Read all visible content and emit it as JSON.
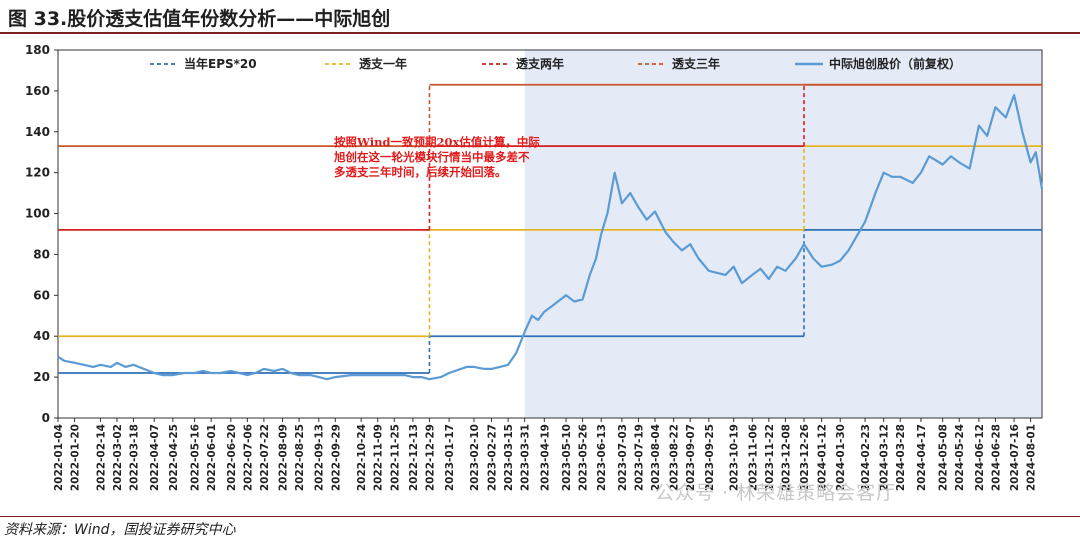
{
  "title": "图 33.股价透支估值年份数分析——中际旭创",
  "source": "资料来源：Wind，国投证券研究中心",
  "watermark": "公众号 · 林荣雄策略会客厅",
  "chart_data": {
    "type": "line",
    "ylim": [
      0,
      180
    ],
    "yticks": [
      0,
      20,
      40,
      60,
      80,
      100,
      120,
      140,
      160,
      180
    ],
    "xlim": [
      "2022-01-04",
      "2024-08-12"
    ],
    "xticks": [
      "2022-01-04",
      "2022-01-20",
      "2022-02-14",
      "2022-03-02",
      "2022-03-18",
      "2022-04-07",
      "2022-04-25",
      "2022-05-16",
      "2022-06-01",
      "2022-06-20",
      "2022-07-06",
      "2022-07-22",
      "2022-08-09",
      "2022-08-25",
      "2022-09-13",
      "2022-09-29",
      "2022-10-24",
      "2022-11-09",
      "2022-11-25",
      "2022-12-13",
      "2022-12-29",
      "2023-01-17",
      "2023-02-10",
      "2023-02-27",
      "2023-03-15",
      "2023-03-31",
      "2023-04-19",
      "2023-05-10",
      "2023-05-26",
      "2023-06-13",
      "2023-07-03",
      "2023-07-19",
      "2023-08-04",
      "2023-08-22",
      "2023-09-07",
      "2023-09-25",
      "2023-10-19",
      "2023-11-06",
      "2023-11-22",
      "2023-12-08",
      "2023-12-26",
      "2024-01-12",
      "2024-01-30",
      "2024-02-23",
      "2024-03-12",
      "2024-03-28",
      "2024-04-17",
      "2024-05-08",
      "2024-05-24",
      "2024-06-12",
      "2024-06-28",
      "2024-07-16",
      "2024-08-01"
    ],
    "grid": false,
    "legend_position": "top",
    "shaded_region": [
      "2023-03-31",
      "2024-08-12"
    ],
    "annotation": "按照Wind一致预期20x估值计算，中际旭创在这一轮光模块行情当中最多差不多透支三年时间，后续开始回落。",
    "series": [
      {
        "name": "当年EPS*20",
        "style": "dashed",
        "color": "#2f6fb8",
        "steps": [
          {
            "x": [
              "2022-01-04",
              "2022-12-29"
            ],
            "y": 22
          },
          {
            "x": [
              "2022-12-29",
              "2023-12-26"
            ],
            "y": 40
          },
          {
            "x": [
              "2023-12-26",
              "2024-08-12"
            ],
            "y": 92
          }
        ]
      },
      {
        "name": "透支一年",
        "style": "dashed",
        "color": "#e6b422",
        "steps": [
          {
            "x": [
              "2022-01-04",
              "2022-12-29"
            ],
            "y": 40
          },
          {
            "x": [
              "2022-12-29",
              "2023-12-26"
            ],
            "y": 92
          },
          {
            "x": [
              "2023-12-26",
              "2024-08-12"
            ],
            "y": 133
          }
        ]
      },
      {
        "name": "透支两年",
        "style": "dashed",
        "color": "#d41f1f",
        "steps": [
          {
            "x": [
              "2022-01-04",
              "2022-12-29"
            ],
            "y": 92
          },
          {
            "x": [
              "2022-12-29",
              "2023-12-26"
            ],
            "y": 133
          },
          {
            "x": [
              "2023-12-26",
              "2024-08-12"
            ],
            "y": 163
          }
        ]
      },
      {
        "name": "透支三年",
        "style": "dashed",
        "color": "#c8562a",
        "steps": [
          {
            "x": [
              "2022-01-04",
              "2022-12-29"
            ],
            "y": 133
          },
          {
            "x": [
              "2022-12-29",
              "2024-08-12"
            ],
            "y": 163
          }
        ]
      },
      {
        "name": "中际旭创股价（前复权）",
        "style": "solid",
        "color": "#5b9bd5",
        "x": [
          "2022-01-04",
          "2022-01-10",
          "2022-01-20",
          "2022-02-07",
          "2022-02-14",
          "2022-02-24",
          "2022-03-02",
          "2022-03-10",
          "2022-03-18",
          "2022-03-28",
          "2022-04-07",
          "2022-04-15",
          "2022-04-25",
          "2022-05-06",
          "2022-05-16",
          "2022-05-24",
          "2022-06-01",
          "2022-06-10",
          "2022-06-20",
          "2022-06-28",
          "2022-07-06",
          "2022-07-14",
          "2022-07-22",
          "2022-08-01",
          "2022-08-09",
          "2022-08-17",
          "2022-08-25",
          "2022-09-05",
          "2022-09-13",
          "2022-09-21",
          "2022-09-29",
          "2022-10-14",
          "2022-10-24",
          "2022-11-01",
          "2022-11-09",
          "2022-11-17",
          "2022-11-25",
          "2022-12-05",
          "2022-12-13",
          "2022-12-21",
          "2022-12-29",
          "2023-01-09",
          "2023-01-17",
          "2023-02-03",
          "2023-02-10",
          "2023-02-20",
          "2023-02-27",
          "2023-03-07",
          "2023-03-15",
          "2023-03-23",
          "2023-03-31",
          "2023-04-07",
          "2023-04-13",
          "2023-04-19",
          "2023-04-27",
          "2023-05-10",
          "2023-05-18",
          "2023-05-26",
          "2023-06-02",
          "2023-06-08",
          "2023-06-13",
          "2023-06-19",
          "2023-06-26",
          "2023-07-03",
          "2023-07-11",
          "2023-07-19",
          "2023-07-27",
          "2023-08-04",
          "2023-08-14",
          "2023-08-22",
          "2023-08-30",
          "2023-09-07",
          "2023-09-15",
          "2023-09-25",
          "2023-10-11",
          "2023-10-19",
          "2023-10-27",
          "2023-11-06",
          "2023-11-14",
          "2023-11-22",
          "2023-11-30",
          "2023-12-08",
          "2023-12-18",
          "2023-12-26",
          "2024-01-04",
          "2024-01-12",
          "2024-01-22",
          "2024-01-30",
          "2024-02-07",
          "2024-02-23",
          "2024-03-04",
          "2024-03-12",
          "2024-03-20",
          "2024-03-28",
          "2024-04-09",
          "2024-04-17",
          "2024-04-25",
          "2024-05-08",
          "2024-05-16",
          "2024-05-24",
          "2024-06-03",
          "2024-06-12",
          "2024-06-20",
          "2024-06-28",
          "2024-07-08",
          "2024-07-16",
          "2024-07-24",
          "2024-08-01",
          "2024-08-06",
          "2024-08-12"
        ],
        "y": [
          30,
          28,
          27,
          25,
          26,
          25,
          27,
          25,
          26,
          24,
          22,
          21,
          21,
          22,
          22,
          23,
          22,
          22,
          23,
          22,
          21,
          22,
          24,
          23,
          24,
          22,
          21,
          21,
          20,
          19,
          20,
          21,
          21,
          21,
          21,
          21,
          21,
          21,
          20,
          20,
          19,
          20,
          22,
          25,
          25,
          24,
          24,
          25,
          26,
          32,
          42,
          50,
          48,
          52,
          55,
          60,
          57,
          58,
          70,
          78,
          90,
          100,
          120,
          105,
          110,
          103,
          97,
          101,
          91,
          86,
          82,
          85,
          78,
          72,
          70,
          74,
          66,
          70,
          73,
          68,
          74,
          72,
          78,
          85,
          78,
          74,
          75,
          77,
          82,
          96,
          110,
          120,
          118,
          118,
          115,
          120,
          128,
          124,
          128,
          125,
          122,
          143,
          138,
          152,
          147,
          158,
          140,
          125,
          130,
          112
        ]
      }
    ]
  }
}
